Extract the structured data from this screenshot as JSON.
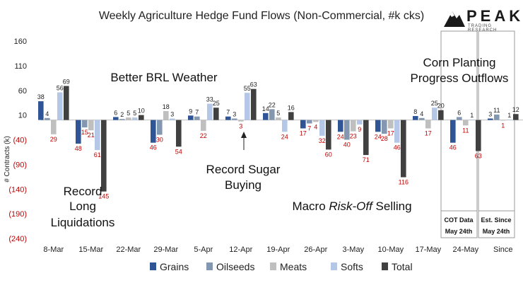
{
  "chart_data": {
    "type": "bar",
    "title": "Weekly Agriculture Hedge Fund Flows (Non-Commercial, #k cks)",
    "ylabel": "# Contracts (k)",
    "xlabel": "",
    "ylim": [
      -240,
      160
    ],
    "yticks": [
      {
        "value": 160,
        "label": "160",
        "negative": false
      },
      {
        "value": 110,
        "label": "110",
        "negative": false
      },
      {
        "value": 60,
        "label": "60",
        "negative": false
      },
      {
        "value": 10,
        "label": "10",
        "negative": false
      },
      {
        "value": -40,
        "label": "(40)",
        "negative": true
      },
      {
        "value": -90,
        "label": "(90)",
        "negative": true
      },
      {
        "value": -140,
        "label": "(140)",
        "negative": true
      },
      {
        "value": -190,
        "label": "(190)",
        "negative": true
      },
      {
        "value": -240,
        "label": "(240)",
        "negative": true
      }
    ],
    "categories": [
      "8-Mar",
      "15-Mar",
      "22-Mar",
      "29-Mar",
      "5-Apr",
      "12-Apr",
      "19-Apr",
      "26-Apr",
      "3-May",
      "10-May",
      "17-May",
      "24-May",
      "Since"
    ],
    "series": [
      {
        "name": "Grains",
        "color": "#2f5597",
        "values": [
          38,
          -48,
          6,
          -46,
          9,
          7,
          14,
          -17,
          -24,
          -24,
          8,
          -46,
          3
        ]
      },
      {
        "name": "Oilseeds",
        "color": "#8497b0",
        "values": [
          4,
          -15,
          2,
          -30,
          7,
          3,
          22,
          -7,
          -40,
          -28,
          4,
          6,
          11
        ]
      },
      {
        "name": "Meats",
        "color": "#bfbfbf",
        "values": [
          -29,
          -21,
          5,
          18,
          -22,
          -3,
          5,
          -4,
          -23,
          -17,
          -17,
          -11,
          -1
        ]
      },
      {
        "name": "Softs",
        "color": "#b4c7e7",
        "values": [
          56,
          -61,
          5,
          3,
          33,
          55,
          -24,
          -32,
          -9,
          -46,
          25,
          1,
          1
        ]
      },
      {
        "name": "Total",
        "color": "#404040",
        "values": [
          69,
          -145,
          10,
          -54,
          25,
          63,
          16,
          -60,
          -71,
          -116,
          20,
          -63,
          12
        ]
      }
    ],
    "annotations": [
      {
        "id": "record-long-liquidations",
        "lines": [
          "Record",
          "Long",
          "Liquidations"
        ]
      },
      {
        "id": "better-brl-weather",
        "lines": [
          "Better BRL Weather"
        ]
      },
      {
        "id": "record-sugar-buying",
        "lines": [
          "Record Sugar",
          "Buying"
        ]
      },
      {
        "id": "macro-risk-off-selling",
        "lines": [
          "Macro ",
          "Risk-Off",
          " Selling"
        ]
      },
      {
        "id": "corn-planting-progress-outflows",
        "lines": [
          "Corn Planting",
          "Progress Outflows"
        ]
      },
      {
        "id": "cot-data-box",
        "lines": [
          "COT Data",
          "May 24th"
        ]
      },
      {
        "id": "est-since-box",
        "lines": [
          "Est. Since",
          "May 24th"
        ]
      }
    ]
  },
  "logo": {
    "name": "PEAK",
    "tagline": "TRADING RESEARCH"
  }
}
